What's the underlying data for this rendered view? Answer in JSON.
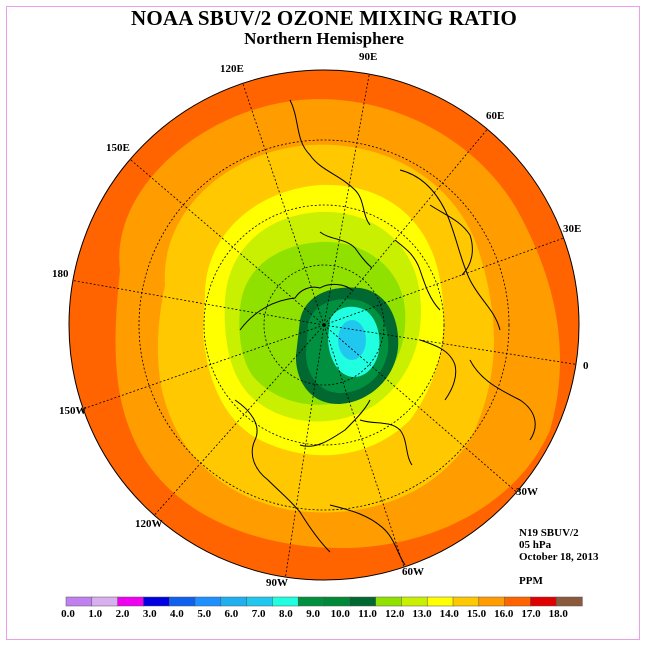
{
  "title": "NOAA SBUV/2 OZONE MIXING RATIO",
  "subtitle": "Northern Hemisphere",
  "longitude_labels": [
    "90E",
    "60E",
    "30E",
    "0",
    "30W",
    "60W",
    "90W",
    "120W",
    "150W",
    "180",
    "150E",
    "120E"
  ],
  "info": {
    "instrument": "N19 SBUV/2",
    "pressure_level": "05 hPa",
    "date": "October 18, 2013",
    "units": "PPM"
  },
  "colorbar": {
    "ticks": [
      "0.0",
      "1.0",
      "2.0",
      "3.0",
      "4.0",
      "5.0",
      "6.0",
      "7.0",
      "8.0",
      "9.0",
      "10.0",
      "11.0",
      "12.0",
      "13.0",
      "14.0",
      "15.0",
      "16.0",
      "17.0",
      "18.0"
    ],
    "colors": [
      "#c080f0",
      "#d8b0f0",
      "#f000f0",
      "#0000e0",
      "#1060f0",
      "#1e90ff",
      "#20b0f0",
      "#20c8f0",
      "#20ffe0",
      "#009040",
      "#008a38",
      "#006830",
      "#90e000",
      "#c8f000",
      "#ffff00",
      "#ffc800",
      "#ff9c00",
      "#ff6400",
      "#e00000",
      "#8b5a3c"
    ]
  }
}
